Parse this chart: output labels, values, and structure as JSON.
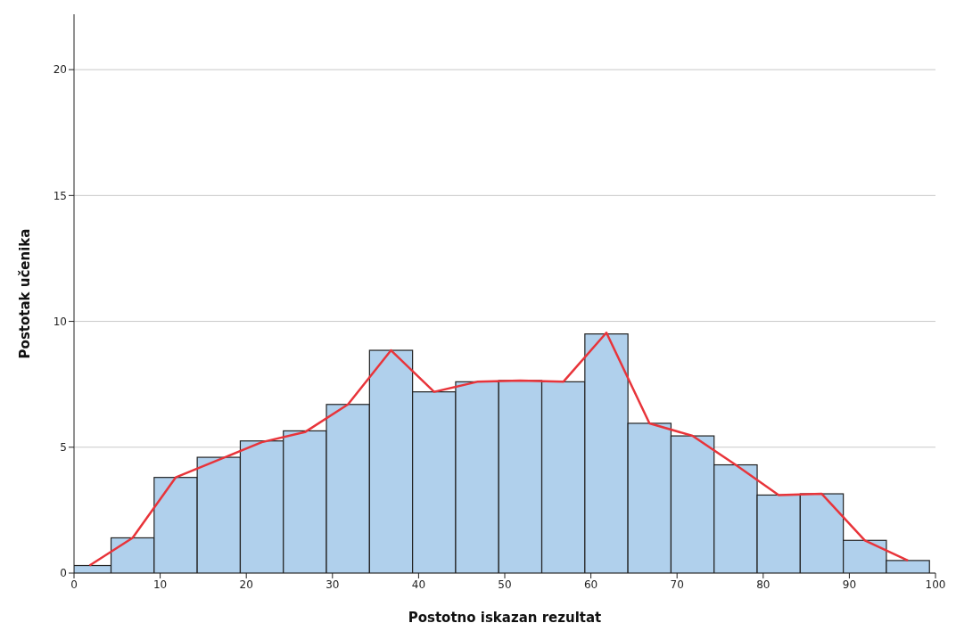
{
  "chart_data": {
    "type": "histogram",
    "xlabel": "Postotno iskazan rezultat",
    "ylabel": "Postotak učenika",
    "bins": [
      0,
      4.3,
      9.3,
      14.3,
      19.3,
      24.3,
      29.3,
      34.3,
      39.3,
      44.3,
      49.3,
      54.3,
      59.3,
      64.3,
      69.3,
      74.3,
      79.3,
      84.3,
      89.3,
      94.3,
      99.3
    ],
    "values": [
      0.3,
      1.4,
      3.8,
      4.6,
      5.25,
      5.65,
      6.7,
      8.85,
      7.2,
      7.6,
      7.65,
      7.6,
      9.5,
      5.95,
      5.45,
      4.3,
      3.1,
      3.15,
      1.3,
      0.5
    ],
    "color": "#b0d0ec",
    "series": [
      {
        "type": "line",
        "color": "#e8343a",
        "x": [
          1.8,
          6.8,
          11.8,
          16.8,
          21.8,
          26.8,
          31.8,
          36.8,
          41.8,
          46.8,
          51.8,
          56.8,
          61.8,
          66.8,
          71.8,
          76.8,
          81.8,
          86.8,
          91.8,
          96.8
        ],
        "values": [
          0.3,
          1.4,
          3.8,
          4.5,
          5.2,
          5.6,
          6.7,
          8.85,
          7.2,
          7.6,
          7.65,
          7.6,
          9.55,
          5.95,
          5.45,
          4.3,
          3.1,
          3.15,
          1.3,
          0.5
        ]
      }
    ],
    "xlim": [
      0,
      100
    ],
    "xticks": [
      0,
      10,
      20,
      30,
      40,
      50,
      60,
      70,
      80,
      90,
      100
    ],
    "ylim": [
      0,
      22.2
    ],
    "yticks": [
      0,
      5,
      10,
      15,
      20
    ],
    "grid": "y",
    "legend": false
  }
}
